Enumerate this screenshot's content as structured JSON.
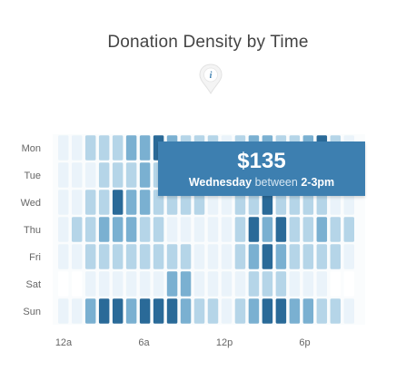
{
  "chart_data": {
    "type": "heatmap",
    "title": "Donation Density by Time",
    "days": [
      "Mon",
      "Tue",
      "Wed",
      "Thu",
      "Fri",
      "Sat",
      "Sun"
    ],
    "hour_ticks": [
      "12a",
      "6a",
      "12p",
      "6p"
    ],
    "hours": [
      0,
      1,
      2,
      3,
      4,
      5,
      6,
      7,
      8,
      9,
      10,
      11,
      12,
      13,
      14,
      15,
      16,
      17,
      18,
      19,
      20,
      21
    ],
    "values": [
      [
        1,
        1,
        2,
        2,
        2,
        3,
        3,
        4,
        3,
        2,
        2,
        2,
        1,
        2,
        3,
        3,
        2,
        2,
        3,
        4,
        2,
        1
      ],
      [
        1,
        1,
        1,
        2,
        2,
        2,
        3,
        2,
        2,
        2,
        1,
        1,
        1,
        2,
        2,
        3,
        2,
        2,
        2,
        1,
        1,
        1
      ],
      [
        1,
        1,
        2,
        2,
        4,
        3,
        3,
        2,
        2,
        2,
        2,
        1,
        1,
        2,
        2,
        4,
        2,
        2,
        2,
        2,
        1,
        1
      ],
      [
        1,
        2,
        2,
        3,
        3,
        3,
        2,
        2,
        1,
        1,
        1,
        1,
        1,
        2,
        4,
        3,
        4,
        2,
        2,
        3,
        2,
        2
      ],
      [
        1,
        1,
        2,
        2,
        2,
        2,
        2,
        2,
        2,
        2,
        1,
        1,
        1,
        2,
        3,
        4,
        3,
        2,
        2,
        2,
        2,
        1
      ],
      [
        0,
        0,
        1,
        1,
        1,
        1,
        1,
        1,
        3,
        3,
        1,
        1,
        1,
        1,
        2,
        2,
        2,
        1,
        1,
        1,
        0,
        0
      ],
      [
        1,
        1,
        3,
        4,
        4,
        3,
        4,
        4,
        4,
        3,
        2,
        2,
        1,
        2,
        3,
        4,
        4,
        3,
        3,
        2,
        2,
        1
      ]
    ],
    "palette": [
      "#ffffff",
      "#eaf3fa",
      "#b5d5e8",
      "#7ab0d1",
      "#2a6a98"
    ],
    "grid": false,
    "legend": "none"
  },
  "tooltip": {
    "amount": "$135",
    "day": "Wednesday",
    "between": "between",
    "time": "2-3pm"
  },
  "info_icon": {
    "name": "info-icon",
    "glyph": "i"
  }
}
